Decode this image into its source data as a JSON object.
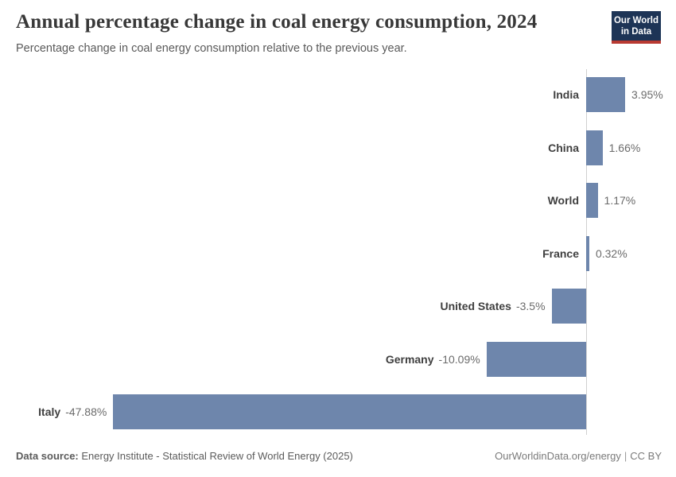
{
  "header": {
    "title": "Annual percentage change in coal energy consumption, 2024",
    "subtitle": "Percentage change in coal energy consumption relative to the previous year.",
    "logo": {
      "line1": "Our World",
      "line2": "in Data"
    }
  },
  "chart_data": {
    "type": "bar",
    "orientation": "horizontal",
    "title": "Annual percentage change in coal energy consumption, 2024",
    "subtitle": "Percentage change in coal energy consumption relative to the previous year.",
    "categories": [
      "India",
      "China",
      "World",
      "France",
      "United States",
      "Germany",
      "Italy"
    ],
    "values": [
      3.95,
      1.66,
      1.17,
      0.32,
      -3.5,
      -10.09,
      -47.88
    ],
    "value_labels": [
      "3.95%",
      "1.66%",
      "1.17%",
      "0.32%",
      "-3.5%",
      "-10.09%",
      "-47.88%"
    ],
    "unit": "%",
    "xlabel": "",
    "ylabel": "",
    "xlim": [
      -47.88,
      3.95
    ],
    "grid": false,
    "legend": "none",
    "bar_color": "#6e86ac",
    "axis_line_color": "#d0d0d0"
  },
  "footer": {
    "source_label": "Data source:",
    "source_text": " Energy Institute - Statistical Review of World Energy (2025)",
    "right_url": "OurWorldinData.org/energy",
    "separator": "|",
    "license": "CC BY"
  }
}
